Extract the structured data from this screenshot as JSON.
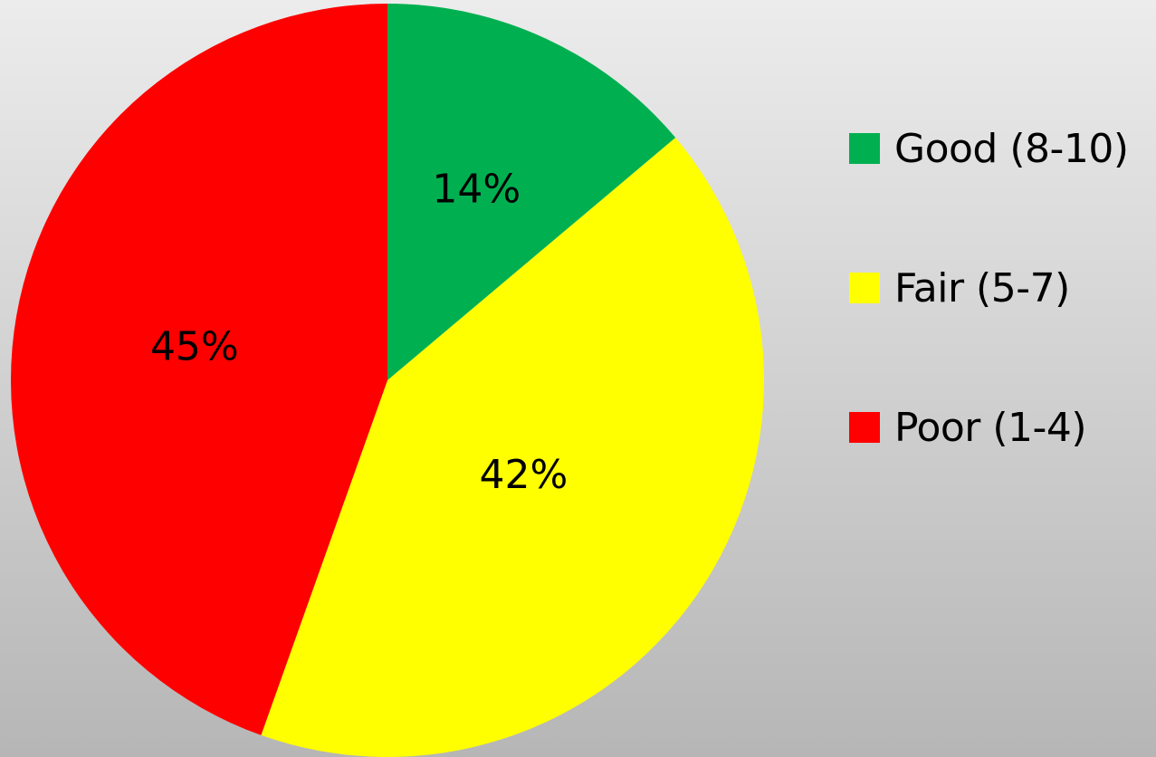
{
  "chart_data": {
    "type": "pie",
    "title": "",
    "slices": [
      {
        "label": "Good (8-10)",
        "value": 14,
        "display": "14%",
        "color": "#00b050"
      },
      {
        "label": "Fair (5-7)",
        "value": 42,
        "display": "42%",
        "color": "#ffff00"
      },
      {
        "label": "Poor (1-4)",
        "value": 45,
        "display": "45%",
        "color": "#ff0000"
      }
    ],
    "start_angle": "12 o'clock",
    "direction": "clockwise",
    "legend_position": "right"
  }
}
